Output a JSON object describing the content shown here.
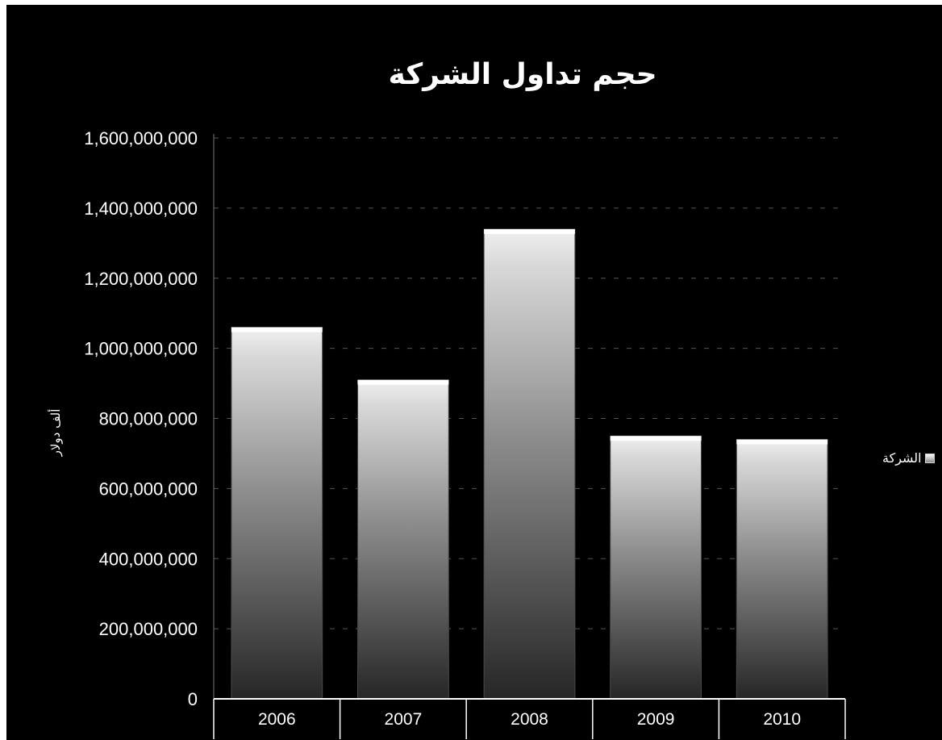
{
  "chart_data": {
    "type": "bar",
    "title": "حجم تداول الشركة",
    "ylabel": "ألف دولار",
    "xlabel": "",
    "categories": [
      "2006",
      "2007",
      "2008",
      "2009",
      "2010"
    ],
    "series": [
      {
        "name": "الشركة",
        "values": [
          1060000000,
          910000000,
          1340000000,
          750000000,
          740000000
        ]
      }
    ],
    "yticks": [
      "0",
      "200,000,000",
      "400,000,000",
      "600,000,000",
      "800,000,000",
      "1,000,000,000",
      "1,200,000,000",
      "1,400,000,000",
      "1,600,000,000"
    ],
    "ylim": [
      0,
      1600000000
    ],
    "grid": true,
    "legend_position": "right",
    "colors": {
      "background": "#000000",
      "bar_top": "#ffffff",
      "bar_bottom": "#2a2a2a",
      "text": "#ffffff",
      "grid": "#555555"
    }
  }
}
